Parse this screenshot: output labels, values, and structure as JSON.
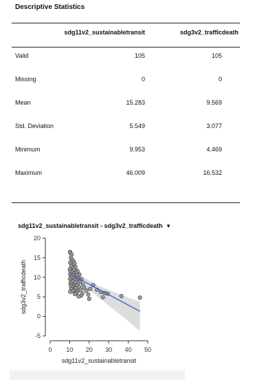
{
  "title": "Descriptive Statistics",
  "columns": [
    "sdg11v2_sustainabletransit",
    "sdg3v2_trafficdeath"
  ],
  "rows": [
    {
      "label": "Valid",
      "v1": "105",
      "v2": "105"
    },
    {
      "label": "Missing",
      "v1": "0",
      "v2": "0"
    },
    {
      "label": "Mean",
      "v1": "15.283",
      "v2": "9.569"
    },
    {
      "label": "Std. Deviation",
      "v1": "5.549",
      "v2": "3.077"
    },
    {
      "label": "Minimum",
      "v1": "9.953",
      "v2": "4.469"
    },
    {
      "label": "Maximum",
      "v1": "46.009",
      "v2": "16.532"
    }
  ],
  "plot": {
    "title": "sdg11v2_sustainabletransit - sdg3v2_trafficdeath",
    "caret": "▼"
  },
  "chart_data": {
    "type": "scatter",
    "xlabel": "sdg11v2_sustainabletransit",
    "ylabel": "sdg3v2_trafficdeath",
    "xlim": [
      0,
      50
    ],
    "ylim": [
      -5,
      20
    ],
    "x_ticks": [
      0,
      10,
      20,
      30,
      40,
      50
    ],
    "y_ticks": [
      -5,
      0,
      5,
      10,
      15,
      20
    ],
    "grid": false,
    "regression_line": {
      "x": [
        10,
        46
      ],
      "y": [
        10.9,
        1.3
      ],
      "color": "#3b5bdb"
    },
    "confidence_band": {
      "x": [
        10,
        15,
        20,
        25,
        30,
        35,
        40,
        46
      ],
      "lower": [
        9.5,
        8.5,
        6.8,
        4.8,
        2.8,
        0.8,
        -1.2,
        -3.8
      ],
      "upper": [
        12.3,
        10.6,
        9.2,
        7.8,
        6.8,
        5.8,
        4.8,
        3.8
      ]
    },
    "points": [
      [
        10.2,
        16.5
      ],
      [
        10.4,
        16.2
      ],
      [
        11.0,
        15.8
      ],
      [
        10.6,
        15.0
      ],
      [
        11.3,
        14.5
      ],
      [
        12.0,
        14.0
      ],
      [
        10.3,
        13.8
      ],
      [
        12.5,
        13.5
      ],
      [
        11.0,
        13.2
      ],
      [
        10.8,
        12.8
      ],
      [
        13.0,
        12.6
      ],
      [
        11.6,
        12.3
      ],
      [
        10.1,
        12.0
      ],
      [
        12.2,
        11.9
      ],
      [
        14.0,
        11.6
      ],
      [
        10.5,
        11.5
      ],
      [
        11.4,
        11.3
      ],
      [
        13.2,
        11.1
      ],
      [
        12.0,
        10.9
      ],
      [
        10.3,
        10.8
      ],
      [
        15.0,
        10.7
      ],
      [
        11.9,
        10.5
      ],
      [
        13.8,
        10.4
      ],
      [
        10.7,
        10.2
      ],
      [
        12.8,
        10.0
      ],
      [
        11.1,
        9.9
      ],
      [
        14.5,
        9.8
      ],
      [
        10.2,
        9.6
      ],
      [
        16.0,
        9.5
      ],
      [
        12.4,
        9.4
      ],
      [
        13.5,
        9.2
      ],
      [
        10.9,
        9.1
      ],
      [
        11.7,
        8.9
      ],
      [
        15.2,
        8.8
      ],
      [
        12.9,
        8.7
      ],
      [
        10.4,
        8.5
      ],
      [
        14.2,
        8.4
      ],
      [
        11.3,
        8.2
      ],
      [
        16.8,
        8.1
      ],
      [
        12.1,
        8.0
      ],
      [
        13.6,
        7.9
      ],
      [
        10.6,
        7.8
      ],
      [
        22.0,
        8.0
      ],
      [
        11.8,
        7.6
      ],
      [
        14.8,
        7.5
      ],
      [
        12.6,
        7.4
      ],
      [
        17.5,
        7.3
      ],
      [
        13.1,
        7.2
      ],
      [
        20.5,
        7.0
      ],
      [
        10.8,
        7.0
      ],
      [
        15.6,
        6.9
      ],
      [
        24.0,
        6.8
      ],
      [
        12.3,
        6.7
      ],
      [
        18.5,
        6.6
      ],
      [
        11.5,
        6.5
      ],
      [
        14.1,
        6.4
      ],
      [
        26.0,
        6.2
      ],
      [
        13.4,
        6.0
      ],
      [
        16.5,
        5.9
      ],
      [
        10.3,
        6.3
      ],
      [
        28.0,
        6.0
      ],
      [
        12.7,
        5.7
      ],
      [
        19.5,
        5.6
      ],
      [
        15.8,
        5.3
      ],
      [
        29.5,
        5.8
      ],
      [
        14.6,
        5.1
      ],
      [
        36.5,
        5.2
      ],
      [
        27.0,
        4.9
      ],
      [
        46.0,
        4.8
      ],
      [
        20.0,
        4.5
      ]
    ]
  }
}
